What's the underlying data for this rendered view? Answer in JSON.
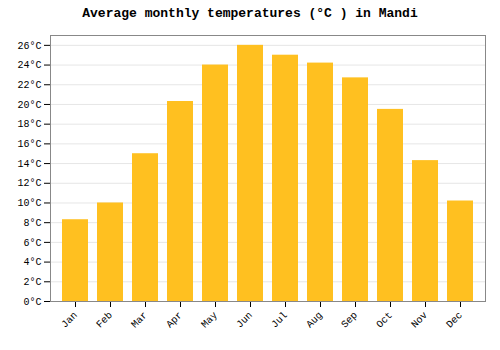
{
  "chart_data": {
    "type": "bar",
    "title": "Average monthly temperatures (°C ) in Mandi",
    "categories": [
      "Jan",
      "Feb",
      "Mar",
      "Apr",
      "May",
      "Jun",
      "Jul",
      "Aug",
      "Sep",
      "Oct",
      "Nov",
      "Dec"
    ],
    "values": [
      8.3,
      10.0,
      15.0,
      20.3,
      24.0,
      26.0,
      25.0,
      24.2,
      22.7,
      19.5,
      14.3,
      10.2
    ],
    "color": "#FFC020",
    "ylim": [
      0,
      27
    ],
    "yticks": [
      {
        "value": 0,
        "label": "0°C"
      },
      {
        "value": 2,
        "label": "2°C"
      },
      {
        "value": 4,
        "label": "4°C"
      },
      {
        "value": 6,
        "label": "6°C"
      },
      {
        "value": 8,
        "label": "8°C"
      },
      {
        "value": 10,
        "label": "10°C"
      },
      {
        "value": 12,
        "label": "12°C"
      },
      {
        "value": 14,
        "label": "14°C"
      },
      {
        "value": 16,
        "label": "16°C"
      },
      {
        "value": 18,
        "label": "18°C"
      },
      {
        "value": 20,
        "label": "20°C"
      },
      {
        "value": 22,
        "label": "22°C"
      },
      {
        "value": 24,
        "label": "24°C"
      },
      {
        "value": 26,
        "label": "26°C"
      }
    ],
    "grid": true
  }
}
